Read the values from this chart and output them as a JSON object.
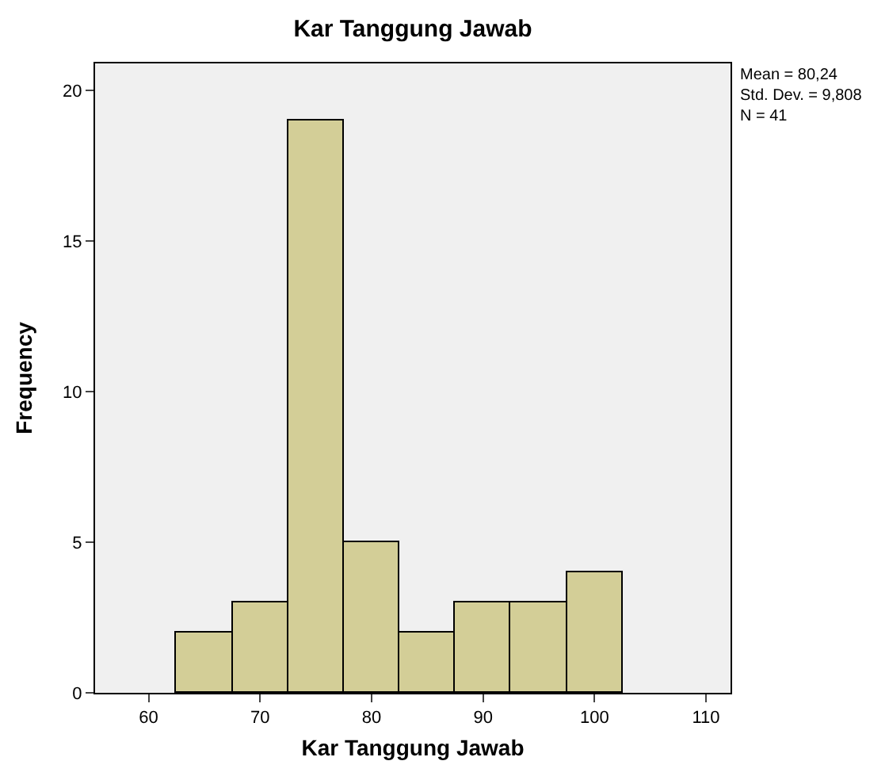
{
  "chart_data": {
    "type": "histogram",
    "title": "Kar Tanggung Jawab",
    "xlabel": "Kar Tanggung Jawab",
    "ylabel": "Frequency",
    "bins": [
      62.5,
      67.5,
      72.5,
      77.5,
      82.5,
      87.5,
      92.5,
      97.5,
      102.5
    ],
    "values": [
      2,
      3,
      19,
      5,
      2,
      3,
      3,
      4
    ],
    "color": "#d3ce97",
    "xlim": [
      55.2,
      112.2
    ],
    "xticks": [
      60,
      70,
      80,
      90,
      100,
      110
    ],
    "ylim": [
      0,
      20.9
    ],
    "yticks": [
      0,
      5,
      10,
      15,
      20
    ],
    "grid": false,
    "annotations": [
      "Mean = 80,24\nStd. Dev. = 9,808\nN = 41"
    ]
  }
}
